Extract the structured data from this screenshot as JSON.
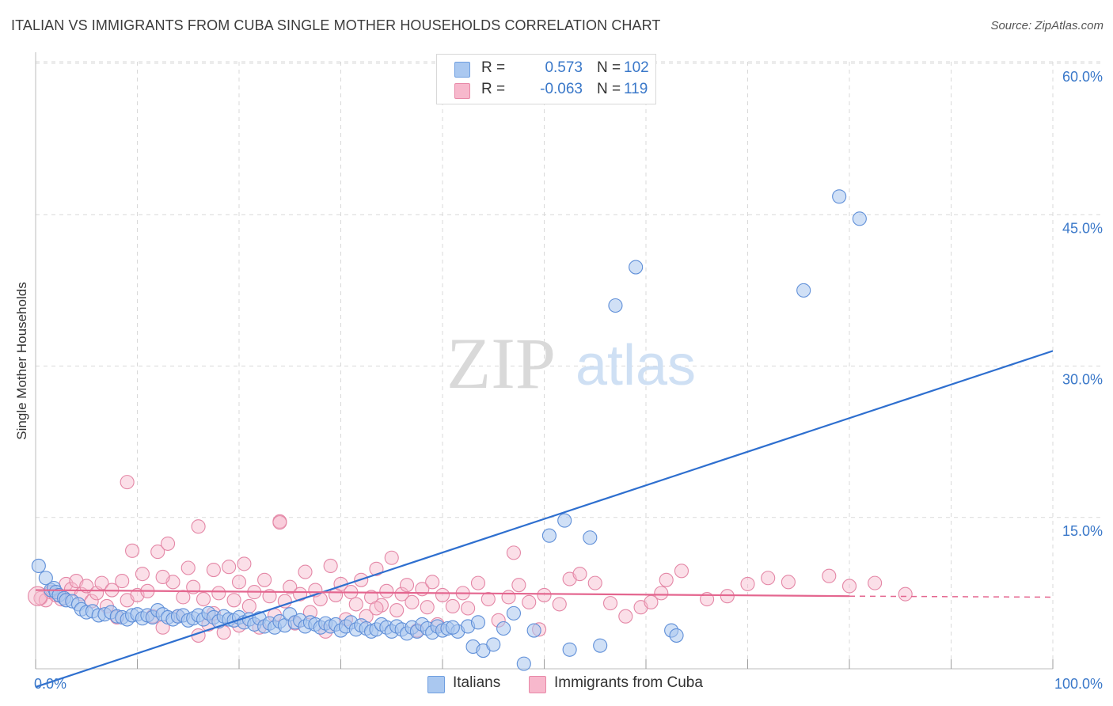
{
  "title": "ITALIAN VS IMMIGRANTS FROM CUBA SINGLE MOTHER HOUSEHOLDS CORRELATION CHART",
  "source": "Source: ZipAtlas.com",
  "watermark": {
    "zip": "ZIP",
    "atlas": "atlas"
  },
  "legend": {
    "r_label": "R =",
    "n_label": "N =",
    "rows": [
      {
        "r": "0.573",
        "n": "102",
        "color": "#aac8f0",
        "border": "#6f9fe0"
      },
      {
        "r": "-0.063",
        "n": "119",
        "color": "#f7b8cc",
        "border": "#e889a8"
      }
    ]
  },
  "colors": {
    "blue_point": "#a9c6ee",
    "blue_stroke": "#5f8fd8",
    "blue_line": "#2e6fcf",
    "pink_point": "#f6b9cc",
    "pink_stroke": "#e487a6",
    "pink_line": "#e4668f",
    "axis_tick_text": "#3a78c9",
    "grid": "#d9d9d9"
  },
  "chart_data": {
    "type": "scatter",
    "title": "ITALIAN VS IMMIGRANTS FROM CUBA SINGLE MOTHER HOUSEHOLDS CORRELATION CHART",
    "xlabel": "",
    "ylabel": "Single Mother Households",
    "xlim": [
      0,
      100
    ],
    "ylim": [
      0,
      60
    ],
    "x_tick_labels": [
      "0.0%",
      "100.0%"
    ],
    "y_ticks": [
      15,
      30,
      45,
      60
    ],
    "y_tick_labels": [
      "15.0%",
      "30.0%",
      "45.0%",
      "60.0%"
    ],
    "series": [
      {
        "name": "Italians",
        "trend": {
          "x0": 0,
          "y0": -1.8,
          "x1": 100,
          "y1": 31.5
        },
        "points": [
          [
            0.3,
            10.2
          ],
          [
            1.0,
            9.0
          ],
          [
            1.5,
            7.8
          ],
          [
            1.8,
            8.0
          ],
          [
            2.0,
            7.6
          ],
          [
            2.3,
            7.3
          ],
          [
            2.8,
            7.0
          ],
          [
            3.0,
            6.8
          ],
          [
            3.6,
            6.7
          ],
          [
            4.2,
            6.4
          ],
          [
            4.5,
            5.9
          ],
          [
            5.0,
            5.6
          ],
          [
            5.6,
            5.7
          ],
          [
            6.2,
            5.3
          ],
          [
            6.8,
            5.4
          ],
          [
            7.4,
            5.6
          ],
          [
            8.0,
            5.2
          ],
          [
            8.5,
            5.1
          ],
          [
            9.0,
            4.9
          ],
          [
            9.5,
            5.3
          ],
          [
            10.0,
            5.4
          ],
          [
            10.5,
            5.0
          ],
          [
            11.0,
            5.3
          ],
          [
            11.5,
            5.1
          ],
          [
            12.0,
            5.8
          ],
          [
            12.5,
            5.4
          ],
          [
            13.0,
            5.1
          ],
          [
            13.5,
            4.9
          ],
          [
            14.0,
            5.2
          ],
          [
            14.5,
            5.3
          ],
          [
            15.0,
            4.8
          ],
          [
            15.5,
            5.0
          ],
          [
            16.0,
            5.3
          ],
          [
            16.5,
            4.9
          ],
          [
            17.0,
            5.5
          ],
          [
            17.5,
            5.1
          ],
          [
            18.0,
            4.7
          ],
          [
            18.5,
            5.2
          ],
          [
            19.0,
            4.9
          ],
          [
            19.5,
            4.8
          ],
          [
            20.0,
            5.1
          ],
          [
            20.5,
            4.6
          ],
          [
            21.0,
            4.9
          ],
          [
            21.5,
            4.4
          ],
          [
            22.0,
            5.0
          ],
          [
            22.5,
            4.2
          ],
          [
            23.0,
            4.5
          ],
          [
            23.5,
            4.1
          ],
          [
            24.0,
            4.7
          ],
          [
            24.5,
            4.3
          ],
          [
            25.0,
            5.4
          ],
          [
            25.5,
            4.6
          ],
          [
            26.0,
            4.8
          ],
          [
            26.5,
            4.2
          ],
          [
            27.0,
            4.6
          ],
          [
            27.5,
            4.4
          ],
          [
            28.0,
            4.1
          ],
          [
            28.5,
            4.5
          ],
          [
            29.0,
            4.2
          ],
          [
            29.5,
            4.4
          ],
          [
            30.0,
            3.8
          ],
          [
            30.5,
            4.2
          ],
          [
            31.0,
            4.6
          ],
          [
            31.5,
            3.9
          ],
          [
            32.0,
            4.3
          ],
          [
            32.5,
            4.0
          ],
          [
            33.0,
            3.7
          ],
          [
            33.5,
            3.9
          ],
          [
            34.0,
            4.4
          ],
          [
            34.5,
            4.1
          ],
          [
            35.0,
            3.7
          ],
          [
            35.5,
            4.2
          ],
          [
            36.0,
            3.9
          ],
          [
            36.5,
            3.5
          ],
          [
            37.0,
            4.1
          ],
          [
            37.5,
            3.7
          ],
          [
            38.0,
            4.4
          ],
          [
            38.5,
            4.0
          ],
          [
            39.0,
            3.6
          ],
          [
            39.5,
            4.2
          ],
          [
            40.0,
            3.8
          ],
          [
            40.5,
            4.0
          ],
          [
            41.5,
            3.7
          ],
          [
            42.5,
            4.2
          ],
          [
            43.0,
            2.2
          ],
          [
            44.0,
            1.8
          ],
          [
            45.0,
            2.4
          ],
          [
            46.0,
            4.0
          ],
          [
            47.0,
            5.5
          ],
          [
            48.0,
            0.5
          ],
          [
            41.0,
            4.1
          ],
          [
            43.5,
            4.6
          ],
          [
            49.0,
            3.8
          ],
          [
            50.5,
            13.2
          ],
          [
            52.0,
            14.7
          ],
          [
            52.5,
            1.9
          ],
          [
            54.5,
            13.0
          ],
          [
            55.5,
            2.3
          ],
          [
            57.0,
            36.0
          ],
          [
            59.0,
            39.8
          ],
          [
            62.5,
            3.8
          ],
          [
            63.0,
            3.3
          ],
          [
            75.5,
            37.5
          ],
          [
            79.0,
            46.8
          ],
          [
            81.0,
            44.6
          ]
        ]
      },
      {
        "name": "Immigrants from Cuba",
        "trend": {
          "x0": 0,
          "y0": 7.8,
          "x1": 80,
          "y1": 7.2,
          "dash_to": 100,
          "dash_y": 7.1
        },
        "points": [
          [
            0.5,
            7.0
          ],
          [
            1.0,
            6.8
          ],
          [
            1.5,
            7.6
          ],
          [
            2.0,
            7.3
          ],
          [
            2.5,
            6.9
          ],
          [
            3.0,
            8.4
          ],
          [
            3.5,
            7.9
          ],
          [
            4.0,
            8.7
          ],
          [
            4.5,
            7.4
          ],
          [
            5.0,
            8.2
          ],
          [
            5.5,
            6.7
          ],
          [
            6.0,
            7.5
          ],
          [
            6.5,
            8.5
          ],
          [
            7.0,
            6.2
          ],
          [
            7.5,
            7.8
          ],
          [
            8.0,
            5.1
          ],
          [
            8.5,
            8.7
          ],
          [
            9.0,
            6.8
          ],
          [
            9.5,
            11.7
          ],
          [
            10.0,
            7.3
          ],
          [
            10.5,
            9.4
          ],
          [
            11.0,
            7.7
          ],
          [
            11.5,
            5.2
          ],
          [
            12.0,
            11.6
          ],
          [
            12.5,
            4.1
          ],
          [
            13.0,
            12.4
          ],
          [
            13.5,
            8.6
          ],
          [
            14.0,
            5.2
          ],
          [
            14.5,
            7.1
          ],
          [
            15.0,
            10.0
          ],
          [
            15.5,
            8.1
          ],
          [
            16.0,
            3.3
          ],
          [
            16.5,
            6.9
          ],
          [
            17.0,
            4.4
          ],
          [
            17.5,
            9.8
          ],
          [
            18.0,
            7.5
          ],
          [
            18.5,
            3.6
          ],
          [
            19.0,
            10.1
          ],
          [
            19.5,
            6.8
          ],
          [
            20.0,
            8.6
          ],
          [
            20.5,
            10.4
          ],
          [
            21.0,
            6.2
          ],
          [
            21.5,
            7.6
          ],
          [
            22.0,
            4.1
          ],
          [
            22.5,
            8.8
          ],
          [
            23.0,
            7.2
          ],
          [
            23.5,
            5.3
          ],
          [
            24.0,
            14.6
          ],
          [
            24.5,
            6.7
          ],
          [
            25.0,
            8.1
          ],
          [
            25.5,
            4.5
          ],
          [
            26.0,
            7.4
          ],
          [
            26.5,
            9.6
          ],
          [
            27.0,
            5.6
          ],
          [
            27.5,
            7.8
          ],
          [
            28.0,
            6.9
          ],
          [
            28.5,
            3.7
          ],
          [
            29.0,
            10.2
          ],
          [
            29.5,
            7.3
          ],
          [
            30.0,
            8.4
          ],
          [
            30.5,
            4.9
          ],
          [
            31.0,
            7.6
          ],
          [
            31.5,
            6.4
          ],
          [
            32.0,
            8.8
          ],
          [
            32.5,
            5.2
          ],
          [
            33.0,
            7.1
          ],
          [
            33.5,
            9.9
          ],
          [
            34.0,
            6.3
          ],
          [
            34.5,
            7.7
          ],
          [
            35.0,
            11.0
          ],
          [
            35.5,
            5.8
          ],
          [
            36.0,
            7.4
          ],
          [
            36.5,
            8.3
          ],
          [
            37.0,
            6.6
          ],
          [
            37.5,
            3.8
          ],
          [
            38.0,
            7.9
          ],
          [
            38.5,
            6.1
          ],
          [
            39.0,
            8.6
          ],
          [
            39.5,
            4.4
          ],
          [
            40.0,
            7.3
          ],
          [
            41.0,
            6.2
          ],
          [
            42.0,
            7.5
          ],
          [
            42.5,
            6.0
          ],
          [
            43.5,
            8.5
          ],
          [
            44.5,
            6.9
          ],
          [
            45.5,
            4.8
          ],
          [
            46.5,
            7.1
          ],
          [
            47.5,
            8.3
          ],
          [
            48.5,
            6.6
          ],
          [
            49.5,
            3.9
          ],
          [
            50.0,
            7.3
          ],
          [
            51.5,
            6.4
          ],
          [
            52.5,
            8.9
          ],
          [
            53.5,
            9.4
          ],
          [
            55.0,
            8.5
          ],
          [
            56.5,
            6.5
          ],
          [
            58.0,
            5.2
          ],
          [
            59.5,
            6.1
          ],
          [
            60.5,
            6.6
          ],
          [
            62.0,
            8.8
          ],
          [
            63.5,
            9.7
          ],
          [
            66.0,
            6.9
          ],
          [
            68.0,
            7.2
          ],
          [
            70.0,
            8.4
          ],
          [
            72.0,
            9.0
          ],
          [
            74.0,
            8.6
          ],
          [
            78.0,
            9.2
          ],
          [
            80.0,
            8.2
          ],
          [
            82.5,
            8.5
          ],
          [
            85.5,
            7.4
          ],
          [
            9.0,
            18.5
          ],
          [
            16.0,
            14.1
          ],
          [
            24.0,
            14.5
          ],
          [
            12.5,
            9.1
          ],
          [
            17.5,
            5.5
          ],
          [
            20.0,
            4.3
          ],
          [
            33.5,
            6.0
          ],
          [
            61.5,
            7.5
          ],
          [
            47.0,
            11.5
          ]
        ]
      }
    ]
  },
  "bottom_legend": [
    "Italians",
    "Immigrants from Cuba"
  ]
}
